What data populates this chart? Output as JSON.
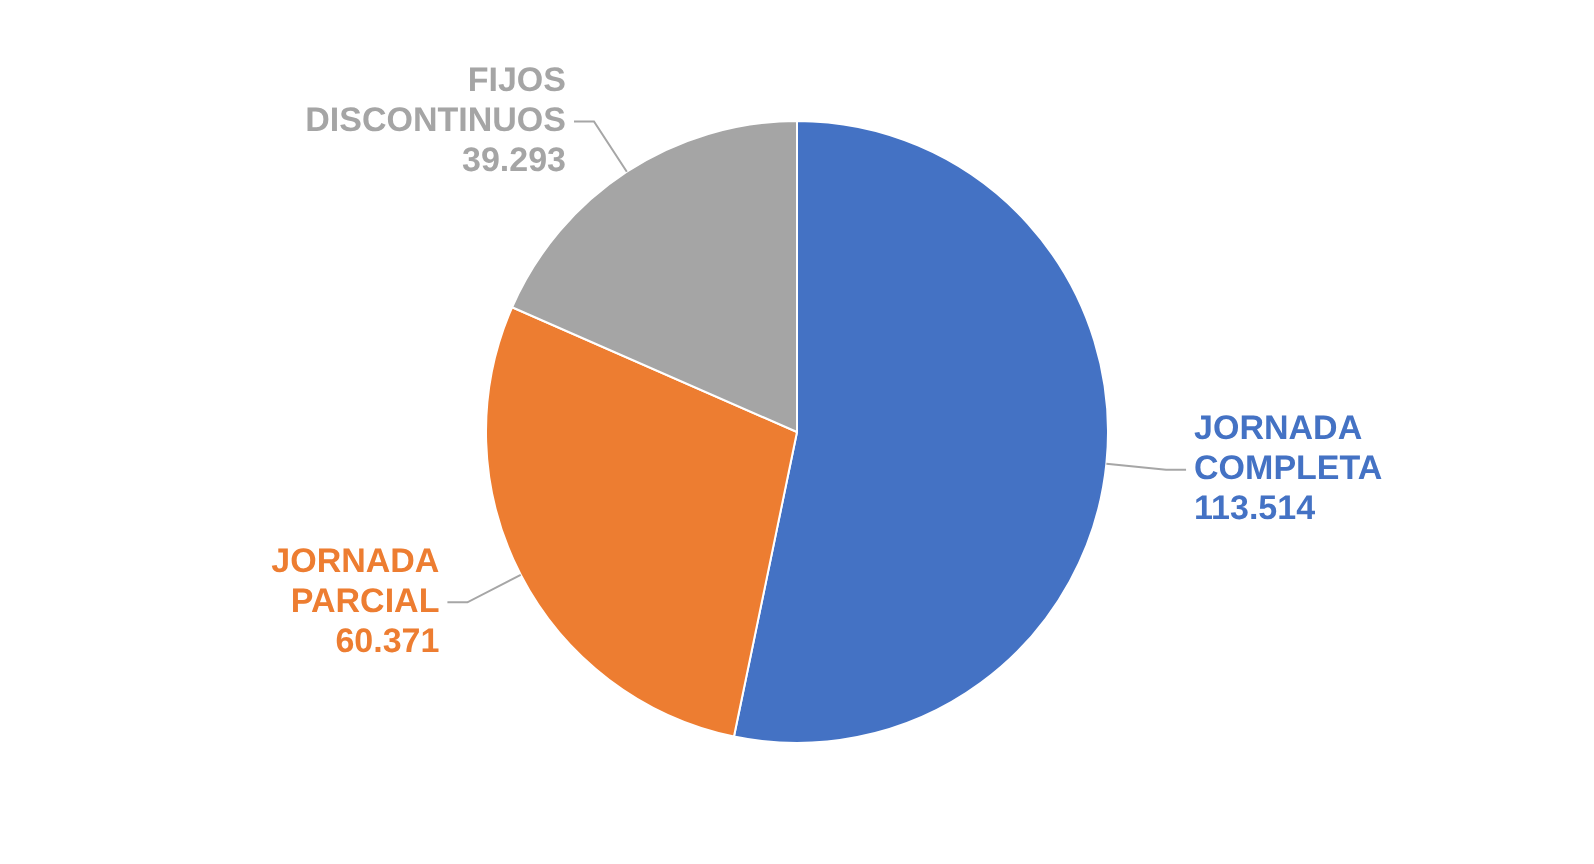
{
  "chart_data": {
    "type": "pie",
    "categories": [
      "JORNADA COMPLETA",
      "JORNADA PARCIAL",
      "FIJOS DISCONTINUOS"
    ],
    "values": [
      113514,
      60371,
      39293
    ],
    "value_labels": [
      "113.514",
      "60.371",
      "39.293"
    ],
    "colors": [
      "#4472c4",
      "#ed7d31",
      "#a5a5a5"
    ],
    "legend": false
  }
}
